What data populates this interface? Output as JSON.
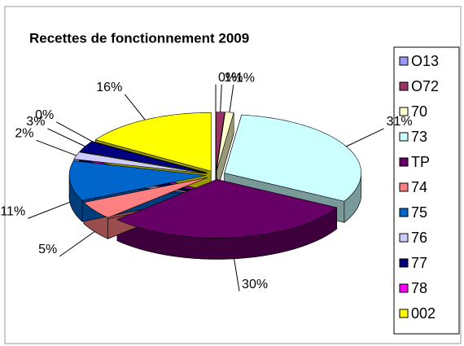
{
  "chart_data": {
    "type": "pie",
    "title": "Recettes de fonctionnement  2009",
    "categories": [
      "O13",
      "O72",
      "70",
      "73",
      "TP",
      "74",
      "75",
      "76",
      "77",
      "78",
      "002"
    ],
    "values": [
      0,
      1,
      1,
      31,
      30,
      5,
      11,
      2,
      3,
      0,
      16
    ],
    "value_labels": [
      "0%",
      "1%",
      "1%",
      "31%",
      "30%",
      "5%",
      "11%",
      "2%",
      "3%",
      "0%",
      "16%"
    ],
    "colors": [
      "#9999ff",
      "#993366",
      "#ffffcc",
      "#ccffff",
      "#660066",
      "#ff8080",
      "#0066cc",
      "#ccccff",
      "#000080",
      "#ff00ff",
      "#ffff00"
    ],
    "legend": "right"
  }
}
